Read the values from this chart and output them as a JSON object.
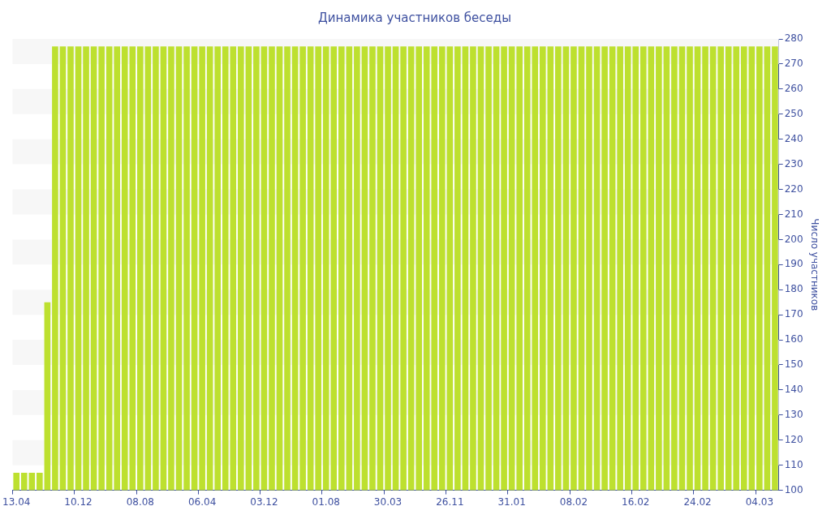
{
  "chart_data": {
    "type": "bar",
    "title": "Динамика участников беседы",
    "ylabel": "Число участников",
    "categories": [
      "13.04",
      null,
      null,
      null,
      null,
      null,
      null,
      null,
      "10.12",
      null,
      null,
      null,
      null,
      null,
      null,
      null,
      "08.08",
      null,
      null,
      null,
      null,
      null,
      null,
      null,
      "06.04",
      null,
      null,
      null,
      null,
      null,
      null,
      null,
      "03.12",
      null,
      null,
      null,
      null,
      null,
      null,
      null,
      "01.08",
      null,
      null,
      null,
      null,
      null,
      null,
      null,
      "30.03",
      null,
      null,
      null,
      null,
      null,
      null,
      null,
      "26.11",
      null,
      null,
      null,
      null,
      null,
      null,
      null,
      "31.01",
      null,
      null,
      null,
      null,
      null,
      null,
      null,
      "08.02",
      null,
      null,
      null,
      null,
      null,
      null,
      null,
      "16.02",
      null,
      null,
      null,
      null,
      null,
      null,
      null,
      "24.02",
      null,
      null,
      null,
      null,
      null,
      null,
      null,
      "04.03",
      null,
      null
    ],
    "values": [
      107,
      107,
      107,
      107,
      175,
      277,
      277,
      277,
      277,
      277,
      277,
      277,
      277,
      277,
      277,
      277,
      277,
      277,
      277,
      277,
      277,
      277,
      277,
      277,
      277,
      277,
      277,
      277,
      277,
      277,
      277,
      277,
      277,
      277,
      277,
      277,
      277,
      277,
      277,
      277,
      277,
      277,
      277,
      277,
      277,
      277,
      277,
      277,
      277,
      277,
      277,
      277,
      277,
      277,
      277,
      277,
      277,
      277,
      277,
      277,
      277,
      277,
      277,
      277,
      277,
      277,
      277,
      277,
      277,
      277,
      277,
      277,
      277,
      277,
      277,
      277,
      277,
      277,
      277,
      277,
      277,
      277,
      277,
      277,
      277,
      277,
      277,
      277,
      277,
      277,
      277,
      277,
      277,
      277,
      277,
      277,
      277,
      277,
      277
    ],
    "color": "#bde02f",
    "ylim": [
      100,
      280
    ],
    "yticks": [
      100,
      110,
      120,
      130,
      140,
      150,
      160,
      170,
      180,
      190,
      200,
      210,
      220,
      230,
      240,
      250,
      260,
      270,
      280
    ],
    "bands": [
      {
        "axis": "y",
        "from": 110,
        "to": 120,
        "color": "#f7f7f7"
      },
      {
        "axis": "y",
        "from": 130,
        "to": 140,
        "color": "#f7f7f7"
      },
      {
        "axis": "y",
        "from": 150,
        "to": 160,
        "color": "#f7f7f7"
      },
      {
        "axis": "y",
        "from": 170,
        "to": 180,
        "color": "#f7f7f7"
      },
      {
        "axis": "y",
        "from": 190,
        "to": 200,
        "color": "#f7f7f7"
      },
      {
        "axis": "y",
        "from": 210,
        "to": 220,
        "color": "#f7f7f7"
      },
      {
        "axis": "y",
        "from": 230,
        "to": 240,
        "color": "#f7f7f7"
      },
      {
        "axis": "y",
        "from": 250,
        "to": 260,
        "color": "#f7f7f7"
      },
      {
        "axis": "y",
        "from": 270,
        "to": 280,
        "color": "#f7f7f7"
      }
    ],
    "legend": false
  }
}
